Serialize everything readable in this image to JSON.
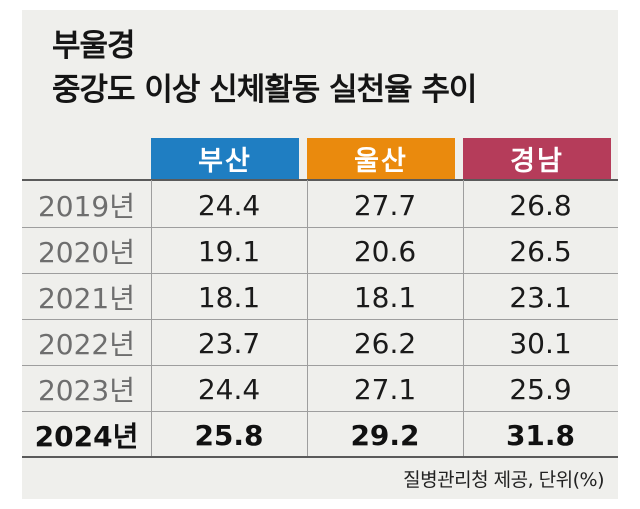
{
  "title": {
    "line1": "부울경",
    "line2": "중강도 이상 신체활동 실천율 추이"
  },
  "source": "질병관리청 제공, 단위(%)",
  "colors": {
    "busan": "#1f7ec2",
    "ulsan": "#ea8a0d",
    "gyeongnam": "#b53c5a"
  },
  "chart_data": {
    "type": "table",
    "title": "부울경 중강도 이상 신체활동 실천율 추이",
    "columns": [
      "부산",
      "울산",
      "경남"
    ],
    "rows": [
      {
        "year": "2019년",
        "values": [
          "24.4",
          "27.7",
          "26.8"
        ]
      },
      {
        "year": "2020년",
        "values": [
          "19.1",
          "20.6",
          "26.5"
        ]
      },
      {
        "year": "2021년",
        "values": [
          "18.1",
          "18.1",
          "23.1"
        ]
      },
      {
        "year": "2022년",
        "values": [
          "23.7",
          "26.2",
          "30.1"
        ]
      },
      {
        "year": "2023년",
        "values": [
          "24.4",
          "27.1",
          "25.9"
        ]
      },
      {
        "year": "2024년",
        "values": [
          "25.8",
          "29.2",
          "31.8"
        ]
      }
    ]
  }
}
